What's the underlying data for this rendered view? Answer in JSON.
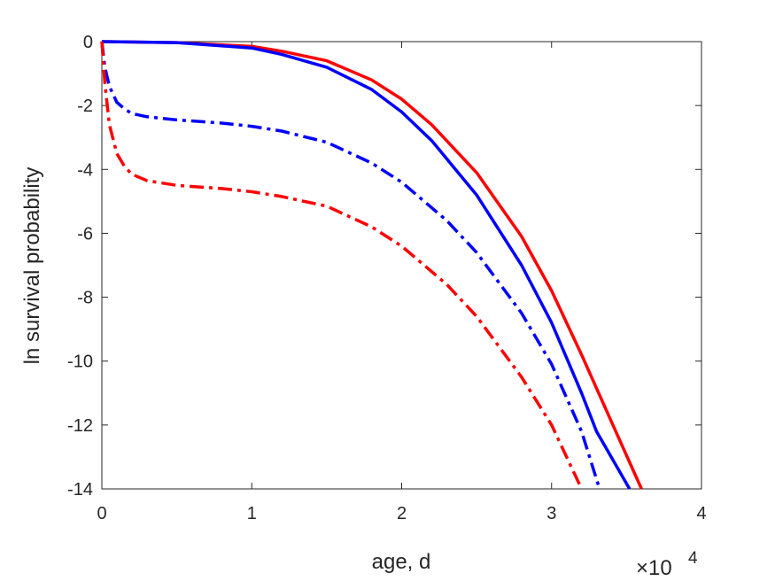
{
  "chart_data": {
    "type": "line",
    "xlabel": "age, d",
    "ylabel": "ln survival probability",
    "x_exponent_label": {
      "base": "×10",
      "power": "4"
    },
    "xlim": [
      0,
      4
    ],
    "ylim": [
      -14,
      0
    ],
    "x_ticks": [
      "0",
      "1",
      "2",
      "3",
      "4"
    ],
    "y_ticks": [
      "0",
      "-2",
      "-4",
      "-6",
      "-8",
      "-10",
      "-12",
      "-14"
    ],
    "grid": false,
    "series": [
      {
        "color": "#ff0000",
        "style": "solid",
        "x": [
          0.0,
          0.5,
          1.0,
          1.2,
          1.5,
          1.8,
          2.0,
          2.2,
          2.5,
          2.8,
          3.0,
          3.2,
          3.4,
          3.6
        ],
        "y": [
          0.0,
          -0.03,
          -0.15,
          -0.3,
          -0.6,
          -1.2,
          -1.8,
          -2.6,
          -4.1,
          -6.1,
          -7.8,
          -9.8,
          -11.9,
          -14.0
        ]
      },
      {
        "color": "#0000ff",
        "style": "solid",
        "x": [
          0.0,
          0.5,
          1.0,
          1.2,
          1.5,
          1.8,
          2.0,
          2.2,
          2.5,
          2.8,
          3.0,
          3.2,
          3.3,
          3.52
        ],
        "y": [
          0.0,
          -0.03,
          -0.2,
          -0.4,
          -0.8,
          -1.5,
          -2.2,
          -3.1,
          -4.8,
          -7.0,
          -8.8,
          -11.0,
          -12.2,
          -14.0
        ]
      },
      {
        "color": "#0000ff",
        "style": "dashdot",
        "x": [
          0.0,
          0.02,
          0.05,
          0.1,
          0.15,
          0.2,
          0.3,
          0.5,
          0.8,
          1.0,
          1.2,
          1.5,
          1.8,
          2.0,
          2.3,
          2.5,
          2.8,
          3.0,
          3.2,
          3.32
        ],
        "y": [
          0.0,
          -0.8,
          -1.4,
          -1.9,
          -2.1,
          -2.25,
          -2.35,
          -2.45,
          -2.55,
          -2.65,
          -2.8,
          -3.15,
          -3.8,
          -4.4,
          -5.6,
          -6.6,
          -8.5,
          -10.1,
          -12.2,
          -14.0
        ]
      },
      {
        "color": "#ff0000",
        "style": "dashdot",
        "x": [
          0.0,
          0.02,
          0.05,
          0.1,
          0.15,
          0.2,
          0.3,
          0.5,
          0.8,
          1.0,
          1.2,
          1.5,
          1.8,
          2.0,
          2.3,
          2.5,
          2.8,
          3.0,
          3.2
        ],
        "y": [
          0.0,
          -1.3,
          -2.6,
          -3.5,
          -3.9,
          -4.15,
          -4.35,
          -4.5,
          -4.6,
          -4.7,
          -4.85,
          -5.15,
          -5.8,
          -6.4,
          -7.6,
          -8.6,
          -10.5,
          -12.0,
          -14.0
        ]
      }
    ]
  }
}
